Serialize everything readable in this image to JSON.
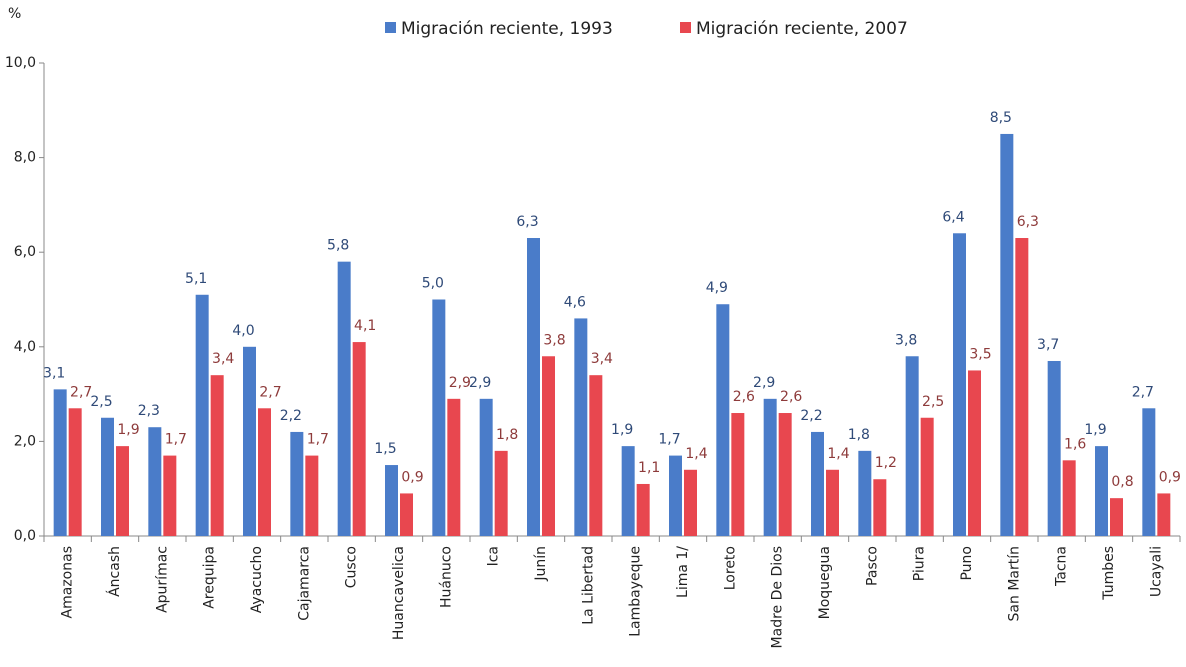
{
  "chart_data": {
    "type": "bar",
    "ylabel": "%",
    "categories": [
      "Amazonas",
      "Áncash",
      "Apurímac",
      "Arequipa",
      "Ayacucho",
      "Cajamarca",
      "Cusco",
      "Huancavelica",
      "Huánuco",
      "Ica",
      "Junín",
      "La Libertad",
      "Lambayeque",
      "Lima 1/",
      "Loreto",
      "Madre De Dios",
      "Moquegua",
      "Pasco",
      "Piura",
      "Puno",
      "San Martín",
      "Tacna",
      "Tumbes",
      "Ucayali"
    ],
    "series": [
      {
        "name": "Migración reciente, 1993",
        "color": "#4a7cc9",
        "label_color": "#2f4a78",
        "values": [
          3.1,
          2.5,
          2.3,
          5.1,
          4.0,
          2.2,
          5.8,
          1.5,
          5.0,
          2.9,
          6.3,
          4.6,
          1.9,
          1.7,
          4.9,
          2.9,
          2.2,
          1.8,
          3.8,
          6.4,
          8.5,
          3.7,
          1.9,
          2.7
        ],
        "value_labels": [
          "3,1",
          "2,5",
          "2,3",
          "5,1",
          "4,0",
          "2,2",
          "5,8",
          "1,5",
          "5,0",
          "2,9",
          "6,3",
          "4,6",
          "1,9",
          "1,7",
          "4,9",
          "2,9",
          "2,2",
          "1,8",
          "3,8",
          "6,4",
          "8,5",
          "3,7",
          "1,9",
          "2,7"
        ]
      },
      {
        "name": "Migración reciente, 2007",
        "color": "#e8474f",
        "label_color": "#8e3b3b",
        "values": [
          2.7,
          1.9,
          1.7,
          3.4,
          2.7,
          1.7,
          4.1,
          0.9,
          2.9,
          1.8,
          3.8,
          3.4,
          1.1,
          1.4,
          2.6,
          2.6,
          1.4,
          1.2,
          2.5,
          3.5,
          6.3,
          1.6,
          0.8,
          0.9
        ],
        "value_labels": [
          "2,7",
          "1,9",
          "1,7",
          "3,4",
          "2,7",
          "1,7",
          "4,1",
          "0,9",
          "2,9",
          "1,8",
          "3,8",
          "3,4",
          "1,1",
          "1,4",
          "2,6",
          "2,6",
          "1,4",
          "1,2",
          "2,5",
          "3,5",
          "6,3",
          "1,6",
          "0,8",
          "0,9"
        ]
      }
    ],
    "ylim": [
      0,
      10
    ],
    "yticks": [
      {
        "value": 0,
        "label": "0,0"
      },
      {
        "value": 2,
        "label": "2,0"
      },
      {
        "value": 4,
        "label": "4,0"
      },
      {
        "value": 6,
        "label": "6,0"
      },
      {
        "value": 8,
        "label": "8,0"
      },
      {
        "value": 10,
        "label": "10,0"
      }
    ],
    "grid": false,
    "legend": "top"
  }
}
